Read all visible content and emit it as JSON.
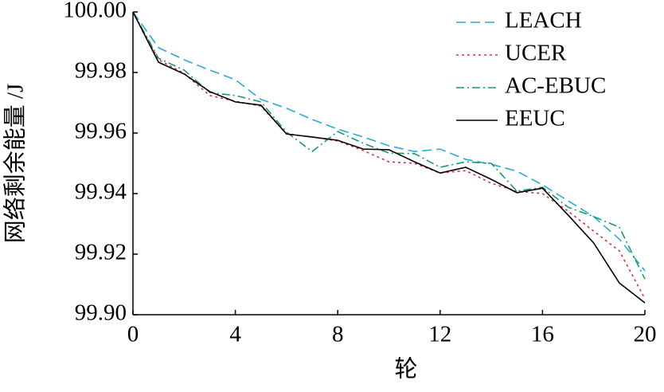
{
  "chart_data": {
    "type": "line",
    "x_label": "轮",
    "y_label": "网络剩余能量 /J",
    "x": [
      0,
      1,
      2,
      3,
      4,
      5,
      6,
      7,
      8,
      9,
      10,
      11,
      12,
      13,
      14,
      15,
      16,
      17,
      18,
      19,
      20
    ],
    "xlim": [
      0,
      20
    ],
    "xticks": [
      0,
      4,
      8,
      12,
      16,
      20
    ],
    "ylim": [
      99.9,
      100
    ],
    "yticks": [
      {
        "value": 99.9,
        "label": "99.90"
      },
      99.92,
      99.94,
      99.96,
      99.98,
      {
        "value": 100,
        "label": "100.00"
      }
    ],
    "legend": "upper right",
    "series": [
      {
        "name": "LEACH",
        "color": "#2aaad8",
        "style": "dashed",
        "values": [
          100,
          99.9882,
          99.9842,
          99.9808,
          99.9776,
          99.9711,
          99.9682,
          99.9645,
          99.9613,
          99.9587,
          99.9558,
          99.9539,
          99.9547,
          99.9513,
          99.9497,
          99.9474,
          99.9429,
          99.9376,
          99.9324,
          99.925,
          99.9145
        ]
      },
      {
        "name": "UCER",
        "color": "#e0303a",
        "style": "dotted",
        "values": [
          100,
          99.9842,
          99.9797,
          99.9724,
          99.9705,
          99.9689,
          99.9597,
          99.9587,
          99.9574,
          99.9542,
          99.9505,
          99.95,
          99.9468,
          99.9476,
          99.9434,
          99.9408,
          99.94,
          99.9342,
          99.9276,
          99.9211,
          99.9053
        ]
      },
      {
        "name": "AC-EBUC",
        "color": "#1a9a6a",
        "style": "dashdot",
        "values": [
          100,
          99.9847,
          99.9808,
          99.9734,
          99.9724,
          99.9703,
          99.9603,
          99.9539,
          99.9605,
          99.9566,
          99.9534,
          99.9532,
          99.9487,
          99.9505,
          99.95,
          99.9408,
          99.9421,
          99.9355,
          99.9324,
          99.9289,
          99.9118
        ]
      },
      {
        "name": "EEUC",
        "color": "#000000",
        "style": "solid",
        "values": [
          100,
          99.9834,
          99.9795,
          99.9737,
          99.9703,
          99.9692,
          99.9597,
          99.9587,
          99.9576,
          99.9547,
          99.9545,
          99.9505,
          99.9468,
          99.9487,
          99.9447,
          99.9403,
          99.9418,
          99.9329,
          99.9237,
          99.9105,
          99.9039
        ]
      }
    ]
  }
}
